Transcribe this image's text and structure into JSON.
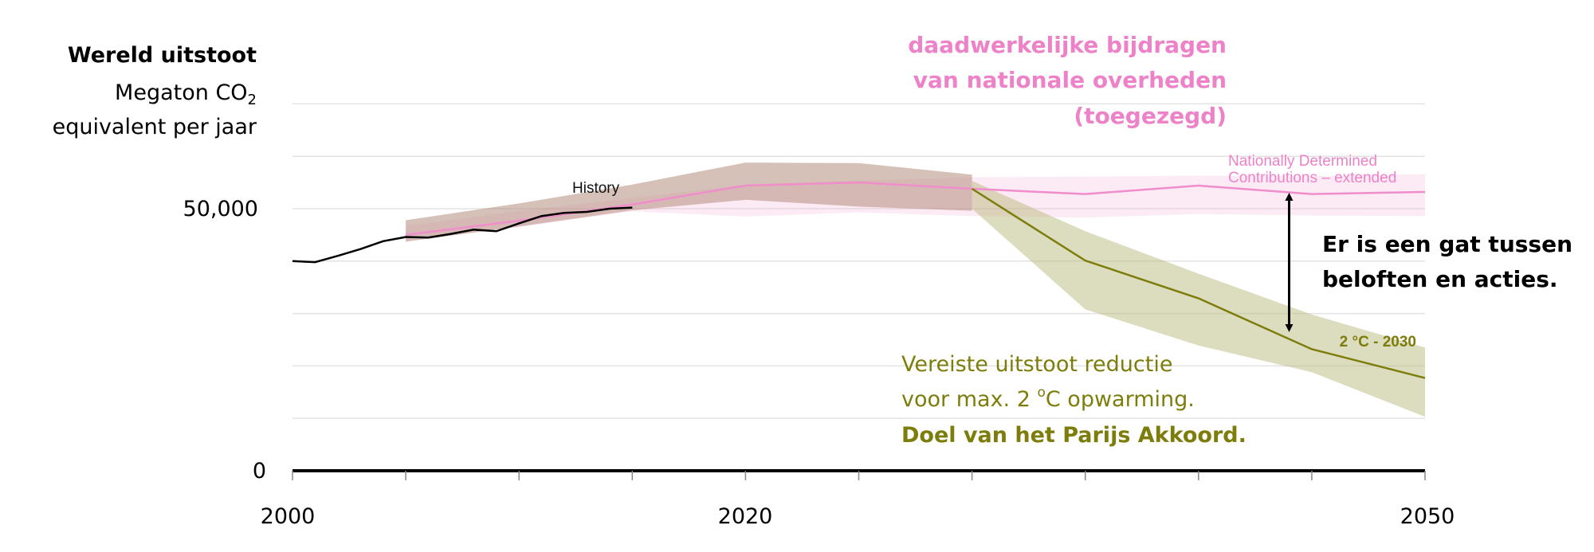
{
  "chart_data": {
    "type": "line",
    "ylabel_title": "Wereld uitstoot",
    "ylabel_unit_pre": "Megaton CO",
    "ylabel_unit_sub": "2",
    "ylabel_unit_line2": "equivalent per jaar",
    "y_ticks": [
      {
        "value": 0,
        "label": "0"
      },
      {
        "value": 50000,
        "label": "50,000"
      }
    ],
    "y_gridlines": [
      10000,
      20000,
      30000,
      40000,
      50000,
      60000,
      70000
    ],
    "x_ticks": [
      {
        "value": 2000,
        "label": "2000"
      },
      {
        "value": 2020,
        "label": "2020"
      },
      {
        "value": 2050,
        "label": "2050"
      }
    ],
    "x_minor_ticks": [
      2005,
      2010,
      2015,
      2025,
      2030,
      2035,
      2040,
      2045
    ],
    "xlim": [
      2000,
      2050
    ],
    "ylim": [
      0,
      70000
    ],
    "series": [
      {
        "name": "History",
        "color": "#000000",
        "x": [
          2000,
          2001,
          2002,
          2003,
          2004,
          2005,
          2006,
          2007,
          2008,
          2009,
          2010,
          2011,
          2012,
          2013,
          2014,
          2015
        ],
        "values": [
          40000,
          39800,
          41000,
          42300,
          43800,
          44600,
          44500,
          45200,
          46000,
          45700,
          47200,
          48600,
          49200,
          49400,
          50000,
          50200
        ]
      },
      {
        "name": "Nationally Determined Contributions – extended",
        "color": "#f08dcb",
        "band_color": "#f6b9df",
        "x": [
          2005,
          2010,
          2015,
          2020,
          2025,
          2030,
          2035,
          2040,
          2045,
          2050
        ],
        "values": [
          45000,
          47700,
          50800,
          54400,
          55000,
          53800,
          52800,
          54400,
          52800,
          53200
        ],
        "upper": [
          46700,
          49600,
          52000,
          54600,
          55400,
          56000,
          56100,
          56300,
          56200,
          56600
        ],
        "lower": [
          43900,
          46500,
          49500,
          48500,
          49300,
          48600,
          48300,
          49000,
          48700,
          48600
        ]
      },
      {
        "name": "History band",
        "color": "#c8a89a",
        "band_color": "#b58e7e",
        "x": [
          2005,
          2010,
          2015,
          2020,
          2025,
          2030
        ],
        "upper": [
          47800,
          51000,
          54600,
          58800,
          58700,
          56500
        ],
        "lower": [
          43700,
          46600,
          49700,
          51700,
          50400,
          49600
        ]
      },
      {
        "name": "2 °C - 2030",
        "color": "#7d7d0c",
        "band_color": "#b9b97e",
        "x": [
          2030,
          2035,
          2040,
          2045,
          2050
        ],
        "values": [
          53800,
          40100,
          32900,
          23200,
          17700
        ],
        "upper": [
          55300,
          45700,
          37600,
          29800,
          23500
        ],
        "lower": [
          50000,
          30800,
          23900,
          18800,
          10300
        ]
      }
    ],
    "annotations": {
      "history": "History",
      "ndc_line1": "Nationally Determined",
      "ndc_line2": "Contributions – extended",
      "two_deg": "2 °C - 2030",
      "pink_line1": "daadwerkelijke bijdragen",
      "pink_line2": "van nationale overheden",
      "pink_line3": "(toegezegd)",
      "gap_line1": "Er is een gat tussen",
      "gap_line2": "beloften en acties.",
      "olive_line1": "Vereiste uitstoot reductie",
      "olive_line2_pre": "voor max. 2 ",
      "olive_line2_sup": "o",
      "olive_line2_post": "C opwarming.",
      "olive_line3": "Doel van het Parijs Akkoord."
    },
    "gap_arrow": {
      "x": 2044,
      "from": 53500,
      "to": 26000
    },
    "colors": {
      "pink_text": "#ee82c8",
      "olive_text": "#7d7d0c",
      "black": "#000000",
      "grid": "#e3e3e3"
    }
  }
}
